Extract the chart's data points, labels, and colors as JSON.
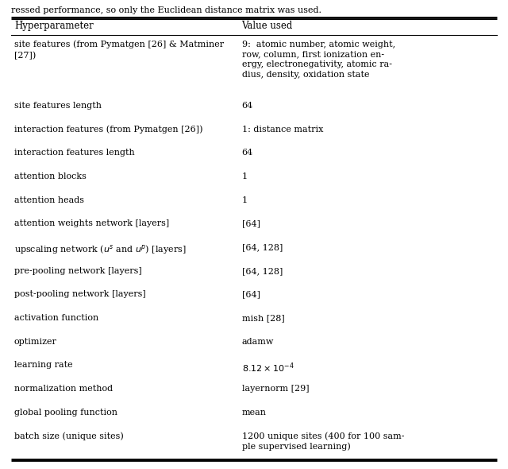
{
  "header_note": "ressed performance, so only the Euclidean distance matrix was used.",
  "col1_header": "Hyperparameter",
  "col2_header": "Value used",
  "rows": [
    {
      "param": "site features (from Pymatgen [26] & Matminer\n[27])",
      "value": "9:  atomic number, atomic weight,\nrow, column, first ionization en-\nergy, electronegativity, atomic ra-\ndius, density, oxidation state",
      "nlines_param": 2,
      "nlines_val": 4
    },
    {
      "param": "site features length",
      "value": "64",
      "nlines_param": 1,
      "nlines_val": 1
    },
    {
      "param": "interaction features (from Pymatgen [26])",
      "value": "1: distance matrix",
      "nlines_param": 1,
      "nlines_val": 1
    },
    {
      "param": "interaction features length",
      "value": "64",
      "nlines_param": 1,
      "nlines_val": 1
    },
    {
      "param": "attention blocks",
      "value": "1",
      "nlines_param": 1,
      "nlines_val": 1
    },
    {
      "param": "attention heads",
      "value": "1",
      "nlines_param": 1,
      "nlines_val": 1
    },
    {
      "param": "attention weights network [layers]",
      "value": "[64]",
      "nlines_param": 1,
      "nlines_val": 1
    },
    {
      "param": "upscaling network ($u^s$ and $u^p$) [layers]",
      "value": "[64, 128]",
      "nlines_param": 1,
      "nlines_val": 1
    },
    {
      "param": "pre-pooling network [layers]",
      "value": "[64, 128]",
      "nlines_param": 1,
      "nlines_val": 1
    },
    {
      "param": "post-pooling network [layers]",
      "value": "[64]",
      "nlines_param": 1,
      "nlines_val": 1
    },
    {
      "param": "activation function",
      "value": "mish [28]",
      "nlines_param": 1,
      "nlines_val": 1
    },
    {
      "param": "optimizer",
      "value": "adamw",
      "nlines_param": 1,
      "nlines_val": 1
    },
    {
      "param": "learning rate",
      "value": "$8.12\\times10^{-4}$",
      "nlines_param": 1,
      "nlines_val": 1
    },
    {
      "param": "normalization method",
      "value": "layernorm [29]",
      "nlines_param": 1,
      "nlines_val": 1
    },
    {
      "param": "global pooling function",
      "value": "mean",
      "nlines_param": 1,
      "nlines_val": 1
    },
    {
      "param": "batch size (unique sites)",
      "value": "1200 unique sites (400 for 100 sam-\nple supervised learning)",
      "nlines_param": 1,
      "nlines_val": 2
    }
  ],
  "font_size": 8.0,
  "col_split": 0.465,
  "background": "#ffffff",
  "line_color": "#000000",
  "note_fontsize": 8.0,
  "header_fontsize": 8.5
}
